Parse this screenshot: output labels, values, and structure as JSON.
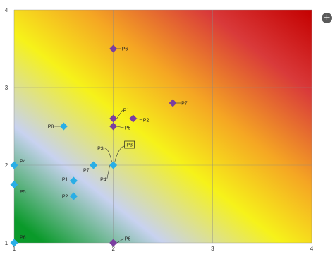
{
  "chart_data": {
    "type": "scatter",
    "title": "",
    "xlabel": "",
    "ylabel": "",
    "xlim": [
      1,
      4
    ],
    "ylim": [
      1,
      4
    ],
    "x_ticks": [
      1,
      2,
      3,
      4
    ],
    "y_ticks": [
      1,
      2,
      3,
      4
    ],
    "grid": true,
    "background": "diagonal gradient green (low) to red (high)",
    "background_colors": [
      "#0a9a2a",
      "#c8d2f0",
      "#f6f21a",
      "#f5a623",
      "#d93a3a",
      "#c40000"
    ],
    "series": [
      {
        "color": "#29aee6",
        "points": [
          {
            "label": "P8",
            "x": 1.5,
            "y": 2.5
          },
          {
            "label": "P4",
            "x": 1.0,
            "y": 2.0
          },
          {
            "label": "P7",
            "x": 1.8,
            "y": 2.0
          },
          {
            "label": "P1",
            "x": 1.6,
            "y": 1.8
          },
          {
            "label": "P5",
            "x": 1.0,
            "y": 1.75
          },
          {
            "label": "P2",
            "x": 1.6,
            "y": 1.6
          },
          {
            "label": "P6",
            "x": 1.0,
            "y": 1.0
          },
          {
            "label": "P4",
            "x": 2.0,
            "y": 2.0
          }
        ]
      },
      {
        "color": "#7b3fa0",
        "points": [
          {
            "label": "P6",
            "x": 2.0,
            "y": 3.5
          },
          {
            "label": "P7",
            "x": 2.6,
            "y": 2.8
          },
          {
            "label": "P1",
            "x": 2.0,
            "y": 2.6
          },
          {
            "label": "P2",
            "x": 2.2,
            "y": 2.6
          },
          {
            "label": "P5",
            "x": 2.0,
            "y": 2.5
          },
          {
            "label": "P6",
            "x": 2.0,
            "y": 1.0
          }
        ]
      }
    ],
    "annotations": [
      {
        "label": "P3",
        "x": 2.0,
        "y": 2.0,
        "boxed": false
      },
      {
        "label": "P3",
        "x": 2.0,
        "y": 2.0,
        "boxed": true
      }
    ]
  },
  "toolbar": {
    "add_icon": "plus-circle-icon",
    "add_symbol": "+"
  }
}
